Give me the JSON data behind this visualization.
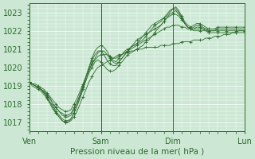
{
  "title": "",
  "xlabel": "Pression niveau de la mer( hPa )",
  "ylabel": "",
  "bg_color": "#cce8d4",
  "plot_bg_color": "#cce8d4",
  "line_color": "#2d6a2d",
  "marker_color": "#2d6a2d",
  "grid_color": "#ffffff",
  "tick_label_color": "#2d6a2d",
  "xlabel_color": "#2d6a2d",
  "ylim": [
    1016.5,
    1023.5
  ],
  "yticks": [
    1017,
    1018,
    1019,
    1020,
    1021,
    1022,
    1023
  ],
  "xtick_positions": [
    0,
    1,
    2,
    3
  ],
  "xtick_labels": [
    "Ven",
    "Sam",
    "Dim",
    "Lun"
  ],
  "n_points": 73,
  "series": [
    [
      1019.2,
      1019.1,
      1019.0,
      1018.9,
      1018.8,
      1018.6,
      1018.4,
      1018.1,
      1017.8,
      1017.5,
      1017.3,
      1017.1,
      1017.0,
      1017.0,
      1017.1,
      1017.3,
      1017.6,
      1018.0,
      1018.4,
      1018.8,
      1019.2,
      1019.5,
      1019.8,
      1020.0,
      1020.1,
      1020.2,
      1020.3,
      1020.4,
      1020.5,
      1020.6,
      1020.7,
      1020.7,
      1020.8,
      1020.8,
      1020.9,
      1020.9,
      1021.0,
      1021.0,
      1021.0,
      1021.1,
      1021.1,
      1021.1,
      1021.1,
      1021.1,
      1021.2,
      1021.2,
      1021.2,
      1021.2,
      1021.3,
      1021.3,
      1021.3,
      1021.4,
      1021.4,
      1021.4,
      1021.4,
      1021.5,
      1021.5,
      1021.5,
      1021.5,
      1021.6,
      1021.6,
      1021.6,
      1021.7,
      1021.7,
      1021.7,
      1021.8,
      1021.8,
      1021.8,
      1021.9,
      1021.9,
      1022.0,
      1022.0,
      1022.0
    ],
    [
      1019.2,
      1019.1,
      1019.1,
      1019.0,
      1018.9,
      1018.8,
      1018.6,
      1018.4,
      1018.2,
      1018.0,
      1017.8,
      1017.7,
      1017.6,
      1017.6,
      1017.7,
      1018.0,
      1018.3,
      1018.7,
      1019.1,
      1019.5,
      1019.9,
      1020.2,
      1020.4,
      1020.6,
      1020.7,
      1020.7,
      1020.7,
      1020.6,
      1020.5,
      1020.5,
      1020.6,
      1020.7,
      1020.8,
      1020.9,
      1021.0,
      1021.1,
      1021.2,
      1021.3,
      1021.4,
      1021.5,
      1021.6,
      1021.7,
      1021.8,
      1021.9,
      1022.0,
      1022.1,
      1022.2,
      1022.2,
      1022.3,
      1022.3,
      1022.3,
      1022.2,
      1022.2,
      1022.1,
      1022.1,
      1022.1,
      1022.1,
      1022.1,
      1022.1,
      1022.1,
      1022.1,
      1022.1,
      1022.1,
      1022.1,
      1022.1,
      1022.1,
      1022.1,
      1022.1,
      1022.1,
      1022.1,
      1022.1,
      1022.1,
      1022.1
    ],
    [
      1019.2,
      1019.1,
      1019.0,
      1018.9,
      1018.8,
      1018.7,
      1018.5,
      1018.3,
      1018.0,
      1017.8,
      1017.6,
      1017.5,
      1017.4,
      1017.4,
      1017.5,
      1017.8,
      1018.1,
      1018.5,
      1018.9,
      1019.3,
      1019.7,
      1020.0,
      1020.3,
      1020.4,
      1020.3,
      1020.1,
      1019.9,
      1019.8,
      1019.8,
      1019.9,
      1020.1,
      1020.3,
      1020.5,
      1020.7,
      1020.8,
      1020.9,
      1021.0,
      1021.1,
      1021.2,
      1021.4,
      1021.5,
      1021.7,
      1021.9,
      1022.1,
      1022.3,
      1022.5,
      1022.7,
      1022.8,
      1022.9,
      1022.9,
      1022.8,
      1022.6,
      1022.4,
      1022.2,
      1022.1,
      1022.0,
      1022.0,
      1022.0,
      1022.0,
      1022.0,
      1022.0,
      1022.0,
      1022.0,
      1022.0,
      1022.0,
      1022.0,
      1022.0,
      1022.0,
      1022.0,
      1022.0,
      1022.0,
      1022.0,
      1022.0
    ],
    [
      1019.2,
      1019.1,
      1019.0,
      1018.9,
      1018.8,
      1018.7,
      1018.5,
      1018.3,
      1018.0,
      1017.8,
      1017.6,
      1017.4,
      1017.3,
      1017.3,
      1017.4,
      1017.7,
      1018.1,
      1018.5,
      1019.0,
      1019.5,
      1020.0,
      1020.4,
      1020.7,
      1020.9,
      1020.9,
      1020.7,
      1020.4,
      1020.2,
      1020.1,
      1020.1,
      1020.3,
      1020.5,
      1020.7,
      1020.9,
      1021.1,
      1021.3,
      1021.5,
      1021.6,
      1021.7,
      1021.8,
      1021.9,
      1022.0,
      1022.1,
      1022.2,
      1022.3,
      1022.5,
      1022.7,
      1022.9,
      1023.0,
      1023.1,
      1022.9,
      1022.7,
      1022.4,
      1022.2,
      1022.1,
      1022.1,
      1022.2,
      1022.2,
      1022.1,
      1022.0,
      1021.9,
      1021.9,
      1021.9,
      1021.9,
      1021.9,
      1021.9,
      1021.9,
      1021.9,
      1021.9,
      1021.9,
      1021.9,
      1021.9,
      1021.9
    ],
    [
      1019.2,
      1019.1,
      1019.0,
      1018.9,
      1018.8,
      1018.6,
      1018.4,
      1018.1,
      1017.9,
      1017.6,
      1017.4,
      1017.2,
      1017.1,
      1017.1,
      1017.2,
      1017.5,
      1017.9,
      1018.3,
      1018.8,
      1019.3,
      1019.8,
      1020.2,
      1020.5,
      1020.8,
      1020.9,
      1020.9,
      1020.7,
      1020.5,
      1020.3,
      1020.2,
      1020.3,
      1020.5,
      1020.7,
      1020.9,
      1021.1,
      1021.2,
      1021.3,
      1021.4,
      1021.5,
      1021.7,
      1021.9,
      1022.1,
      1022.3,
      1022.4,
      1022.5,
      1022.7,
      1022.9,
      1023.1,
      1023.2,
      1023.2,
      1023.0,
      1022.7,
      1022.4,
      1022.2,
      1022.1,
      1022.2,
      1022.3,
      1022.3,
      1022.2,
      1022.1,
      1022.0,
      1022.0,
      1022.0,
      1022.1,
      1022.1,
      1022.1,
      1022.1,
      1022.1,
      1022.1,
      1022.1,
      1022.1,
      1022.1,
      1022.1
    ],
    [
      1019.2,
      1019.0,
      1018.9,
      1018.8,
      1018.7,
      1018.5,
      1018.3,
      1018.0,
      1017.7,
      1017.5,
      1017.3,
      1017.1,
      1017.0,
      1017.0,
      1017.2,
      1017.5,
      1017.9,
      1018.4,
      1018.9,
      1019.5,
      1020.0,
      1020.5,
      1020.9,
      1021.1,
      1021.2,
      1021.1,
      1020.9,
      1020.6,
      1020.4,
      1020.3,
      1020.5,
      1020.7,
      1020.9,
      1021.0,
      1021.1,
      1021.2,
      1021.3,
      1021.5,
      1021.7,
      1021.9,
      1022.1,
      1022.3,
      1022.4,
      1022.5,
      1022.6,
      1022.7,
      1022.8,
      1023.0,
      1023.2,
      1023.3,
      1023.1,
      1022.8,
      1022.5,
      1022.3,
      1022.2,
      1022.3,
      1022.4,
      1022.4,
      1022.3,
      1022.2,
      1022.1,
      1022.1,
      1022.1,
      1022.2,
      1022.2,
      1022.2,
      1022.2,
      1022.2,
      1022.2,
      1022.2,
      1022.2,
      1022.2,
      1022.2
    ]
  ]
}
